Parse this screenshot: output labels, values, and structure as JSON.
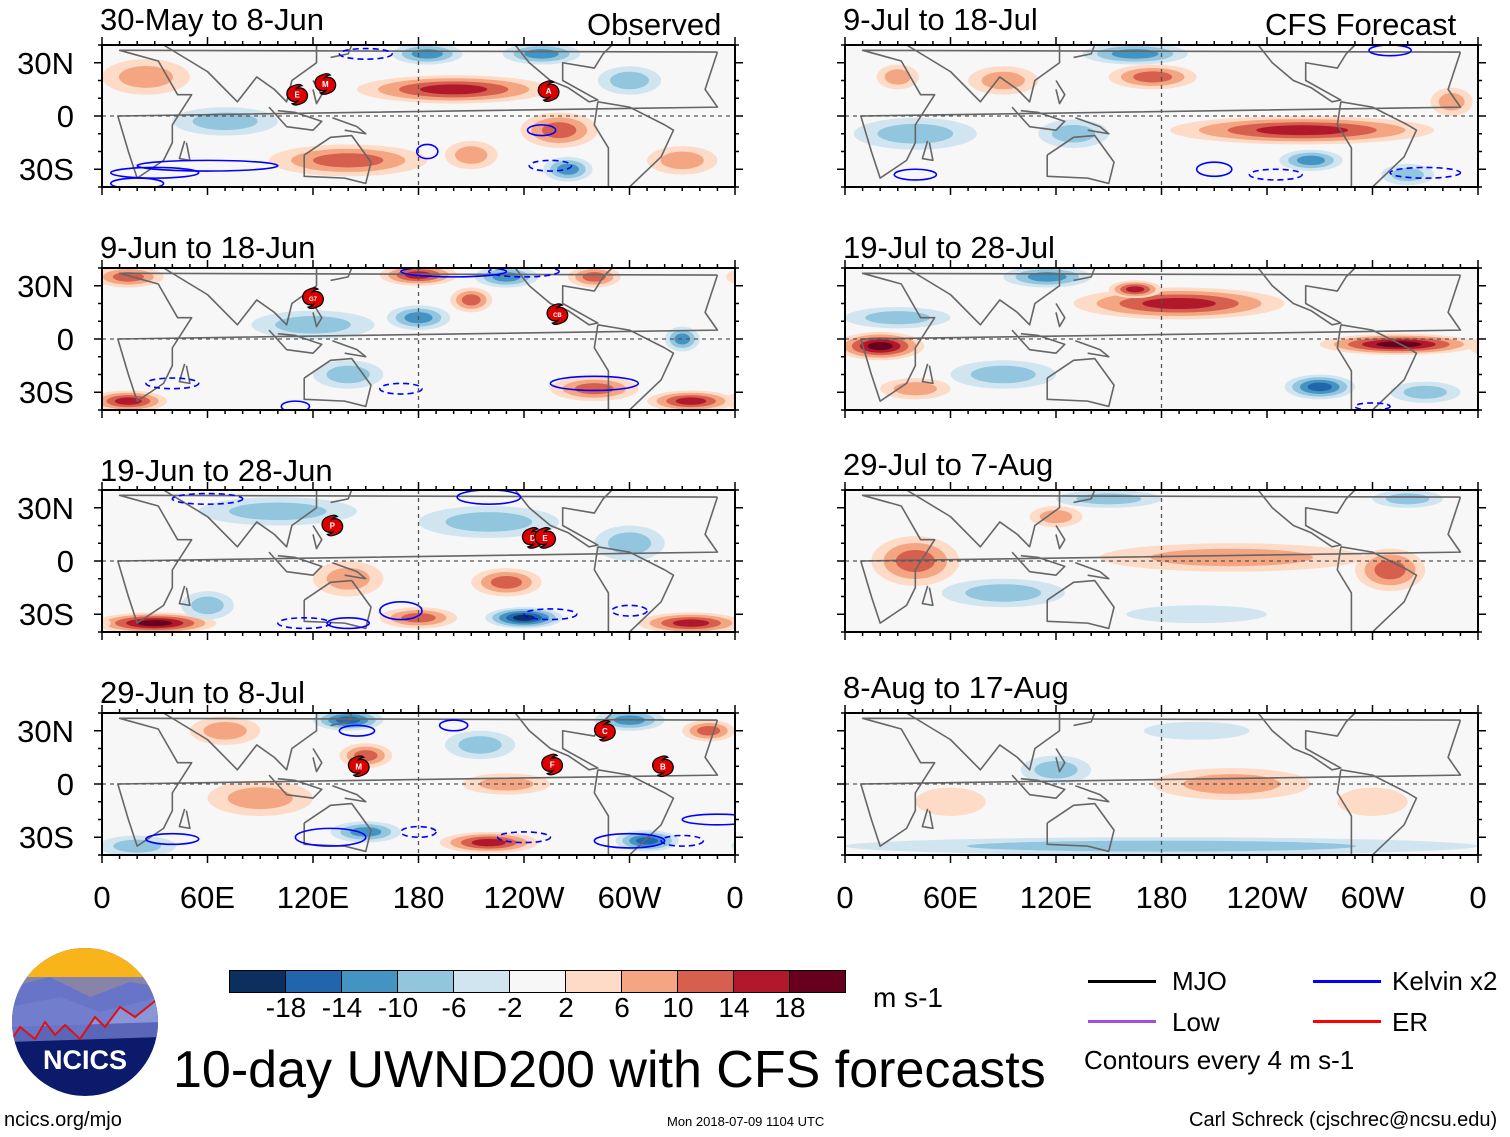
{
  "figure_title": "10-day UWND200 with CFS forecasts",
  "headers": {
    "observed": "Observed",
    "forecast": "CFS Forecast"
  },
  "footer": {
    "url": "ncics.org/mjo",
    "timestamp": "Mon 2018-07-09 1104 UTC",
    "author": "Carl Schreck (cjschrec@ncsu.edu)"
  },
  "logo": {
    "text": "NCICS"
  },
  "colorbar": {
    "units": "m s-1",
    "labels": [
      "-18",
      "-14",
      "-10",
      "-6",
      "-2",
      "2",
      "6",
      "10",
      "14",
      "18"
    ],
    "colors": [
      "#0b305f",
      "#2166ac",
      "#4393c3",
      "#92c5de",
      "#d1e5f0",
      "#f7f7f7",
      "#fddbc7",
      "#f4a582",
      "#d6604d",
      "#b2182b",
      "#67001f"
    ]
  },
  "legend": {
    "items": [
      {
        "label": "MJO",
        "color": "#000000"
      },
      {
        "label": "Kelvin x2",
        "color": "#0000ff"
      },
      {
        "label": "Low",
        "color": "#a050e0"
      },
      {
        "label": "ER",
        "color": "#ff0000"
      }
    ],
    "note": "Contours every 4 m s-1"
  },
  "chart_data": {
    "type": "heatmap",
    "variable": "200-hPa zonal wind anomaly",
    "units": "m s-1",
    "x_ticks": [
      "0",
      "60E",
      "120E",
      "180",
      "120W",
      "60W",
      "0"
    ],
    "x_tick_lons": [
      0,
      60,
      120,
      180,
      240,
      300,
      360
    ],
    "y_ticks": [
      "30N",
      "0",
      "30S"
    ],
    "y_tick_lats": [
      30,
      0,
      -30
    ],
    "lat_range": [
      -40,
      40
    ],
    "lon_range": [
      0,
      360
    ],
    "panels": [
      {
        "title": "30-May to 8-Jun",
        "kind": "observed",
        "storms": [
          {
            "label": "E",
            "lon": 111,
            "lat": 12
          },
          {
            "label": "M",
            "lon": 127,
            "lat": 18
          },
          {
            "label": "A",
            "lon": 254,
            "lat": 14
          }
        ]
      },
      {
        "title": "9-Jun to 18-Jun",
        "kind": "observed",
        "storms": [
          {
            "label": "G7",
            "lon": 120,
            "lat": 23
          },
          {
            "label": "CB",
            "lon": 259,
            "lat": 14
          }
        ]
      },
      {
        "title": "19-Jun to 28-Jun",
        "kind": "observed",
        "storms": [
          {
            "label": "P",
            "lon": 131,
            "lat": 20
          },
          {
            "label": "D",
            "lon": 245,
            "lat": 13
          },
          {
            "label": "E",
            "lon": 252,
            "lat": 13
          }
        ]
      },
      {
        "title": "29-Jun to 8-Jul",
        "kind": "observed",
        "storms": [
          {
            "label": "M",
            "lon": 146,
            "lat": 10
          },
          {
            "label": "F",
            "lon": 256,
            "lat": 11
          },
          {
            "label": "C",
            "lon": 286,
            "lat": 30
          },
          {
            "label": "B",
            "lon": 319,
            "lat": 10
          }
        ]
      },
      {
        "title": "9-Jul to 18-Jul",
        "kind": "forecast",
        "storms": []
      },
      {
        "title": "19-Jul to 28-Jul",
        "kind": "forecast",
        "storms": []
      },
      {
        "title": "29-Jul to 7-Aug",
        "kind": "forecast",
        "storms": []
      },
      {
        "title": "8-Aug to 17-Aug",
        "kind": "forecast",
        "storms": []
      }
    ]
  }
}
